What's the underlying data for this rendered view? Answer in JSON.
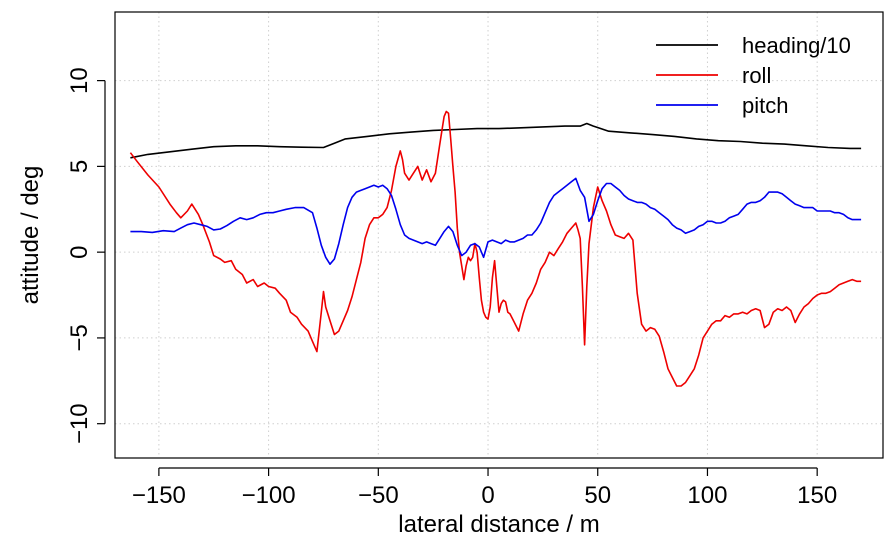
{
  "chart_data": {
    "type": "line",
    "title": "",
    "xlabel": "lateral distance / m",
    "ylabel": "attitude / deg",
    "xlim": [
      -170,
      180
    ],
    "ylim": [
      -12,
      14
    ],
    "xticks": [
      -150,
      -100,
      -50,
      0,
      50,
      100,
      150
    ],
    "yticks": [
      -10,
      -5,
      0,
      5,
      10
    ],
    "xtick_labels": [
      "−150",
      "−100",
      "−50",
      "0",
      "50",
      "100",
      "150"
    ],
    "ytick_labels": [
      "−10",
      "−5",
      "0",
      "5",
      "10"
    ],
    "grid": true,
    "legend_position": "top-right",
    "series": [
      {
        "name": "heading/10",
        "color": "#000000",
        "x": [
          -163,
          -155,
          -145,
          -135,
          -125,
          -115,
          -105,
          -95,
          -85,
          -75,
          -70,
          -65,
          -55,
          -45,
          -35,
          -25,
          -15,
          -5,
          5,
          15,
          25,
          35,
          42,
          45,
          48,
          55,
          65,
          75,
          85,
          95,
          105,
          115,
          125,
          135,
          145,
          155,
          165,
          170
        ],
        "y": [
          5.5,
          5.7,
          5.85,
          6.0,
          6.15,
          6.2,
          6.2,
          6.15,
          6.12,
          6.1,
          6.35,
          6.6,
          6.75,
          6.9,
          7.0,
          7.1,
          7.15,
          7.2,
          7.2,
          7.25,
          7.3,
          7.35,
          7.35,
          7.5,
          7.35,
          7.05,
          6.95,
          6.85,
          6.75,
          6.6,
          6.5,
          6.45,
          6.35,
          6.3,
          6.2,
          6.1,
          6.05,
          6.05
        ]
      },
      {
        "name": "roll",
        "color": "#ee0000",
        "x": [
          -163,
          -160,
          -155,
          -150,
          -145,
          -142,
          -140,
          -137,
          -135,
          -132,
          -130,
          -127,
          -125,
          -122,
          -120,
          -117,
          -115,
          -112,
          -110,
          -107,
          -105,
          -102,
          -100,
          -97,
          -95,
          -92,
          -90,
          -87,
          -85,
          -82,
          -80,
          -78,
          -76,
          -75,
          -74,
          -72,
          -70,
          -68,
          -66,
          -64,
          -62,
          -60,
          -58,
          -56,
          -54,
          -52,
          -50,
          -48,
          -46,
          -44,
          -42,
          -40,
          -39,
          -38,
          -36,
          -34,
          -32,
          -30,
          -28,
          -26,
          -24,
          -22,
          -20,
          -19,
          -18,
          -17,
          -16,
          -15,
          -14,
          -13,
          -12,
          -11,
          -10,
          -9,
          -8,
          -7,
          -6,
          -5,
          -4,
          -3,
          -2,
          -1,
          0,
          1,
          2,
          3,
          4,
          5,
          6,
          7,
          8,
          9,
          10,
          12,
          14,
          16,
          18,
          20,
          22,
          24,
          26,
          28,
          30,
          32,
          34,
          36,
          38,
          40,
          41,
          42,
          43,
          44,
          45,
          46,
          48,
          50,
          52,
          54,
          56,
          58,
          60,
          62,
          64,
          66,
          68,
          70,
          72,
          74,
          76,
          78,
          80,
          82,
          84,
          86,
          88,
          90,
          92,
          94,
          96,
          98,
          100,
          102,
          104,
          106,
          108,
          110,
          112,
          114,
          116,
          118,
          120,
          122,
          124,
          126,
          128,
          130,
          132,
          134,
          136,
          138,
          140,
          142,
          144,
          146,
          148,
          150,
          152,
          154,
          156,
          158,
          160,
          162,
          164,
          166,
          168,
          170
        ],
        "y": [
          5.8,
          5.3,
          4.5,
          3.8,
          2.8,
          2.3,
          2.0,
          2.4,
          2.8,
          2.2,
          1.6,
          0.6,
          -0.2,
          -0.4,
          -0.6,
          -0.5,
          -1.0,
          -1.3,
          -1.8,
          -1.6,
          -2.0,
          -1.8,
          -2.0,
          -2.1,
          -2.4,
          -2.8,
          -3.5,
          -3.8,
          -4.2,
          -4.6,
          -5.2,
          -5.8,
          -3.5,
          -2.3,
          -3.2,
          -4.0,
          -4.8,
          -4.6,
          -4.0,
          -3.4,
          -2.6,
          -1.6,
          -0.6,
          0.8,
          1.6,
          2.0,
          2.0,
          2.2,
          2.6,
          3.6,
          5.0,
          5.9,
          5.4,
          4.6,
          4.2,
          4.6,
          5.0,
          4.2,
          4.8,
          4.1,
          4.6,
          6.3,
          7.9,
          8.2,
          8.1,
          6.6,
          5.0,
          3.5,
          1.4,
          0.0,
          -0.8,
          -1.6,
          -0.8,
          -0.3,
          -0.5,
          -0.3,
          0.5,
          0.0,
          -1.5,
          -2.8,
          -3.5,
          -3.8,
          -3.9,
          -3.2,
          -1.5,
          -0.5,
          -2.0,
          -3.5,
          -3.0,
          -2.8,
          -2.9,
          -3.5,
          -3.6,
          -4.1,
          -4.6,
          -3.6,
          -2.8,
          -2.4,
          -1.8,
          -1.0,
          -0.6,
          0.0,
          -0.2,
          0.2,
          0.6,
          1.1,
          1.4,
          1.7,
          1.3,
          0.8,
          -2.0,
          -5.4,
          -2.0,
          0.5,
          2.6,
          3.8,
          3.0,
          2.4,
          1.6,
          1.0,
          0.9,
          0.8,
          1.1,
          0.7,
          -2.4,
          -4.2,
          -4.6,
          -4.4,
          -4.5,
          -4.9,
          -5.8,
          -6.8,
          -7.3,
          -7.8,
          -7.8,
          -7.6,
          -7.2,
          -6.8,
          -6.0,
          -5.0,
          -4.6,
          -4.2,
          -4.0,
          -4.0,
          -3.7,
          -3.8,
          -3.6,
          -3.6,
          -3.5,
          -3.6,
          -3.4,
          -3.3,
          -3.4,
          -4.4,
          -4.2,
          -3.5,
          -3.3,
          -3.4,
          -3.2,
          -3.4,
          -4.1,
          -3.6,
          -3.2,
          -3.0,
          -2.7,
          -2.5,
          -2.4,
          -2.4,
          -2.3,
          -2.1,
          -1.9,
          -1.8,
          -1.7,
          -1.6,
          -1.7,
          -1.7
        ]
      },
      {
        "name": "pitch",
        "color": "#0000ee",
        "x": [
          -163,
          -158,
          -153,
          -148,
          -143,
          -140,
          -137,
          -134,
          -131,
          -128,
          -125,
          -122,
          -119,
          -116,
          -113,
          -110,
          -107,
          -104,
          -101,
          -98,
          -95,
          -92,
          -88,
          -84,
          -80,
          -78,
          -76,
          -74,
          -72,
          -70,
          -68,
          -66,
          -64,
          -62,
          -60,
          -58,
          -56,
          -54,
          -52,
          -50,
          -48,
          -46,
          -44,
          -42,
          -40,
          -38,
          -36,
          -34,
          -32,
          -30,
          -28,
          -26,
          -24,
          -22,
          -20,
          -18,
          -16,
          -14,
          -12,
          -10,
          -8,
          -6,
          -4,
          -2,
          0,
          2,
          4,
          6,
          8,
          10,
          12,
          14,
          16,
          18,
          20,
          22,
          24,
          26,
          28,
          30,
          32,
          34,
          36,
          38,
          40,
          42,
          44,
          46,
          48,
          50,
          52,
          54,
          56,
          58,
          60,
          62,
          64,
          66,
          68,
          70,
          72,
          74,
          76,
          78,
          80,
          82,
          84,
          86,
          88,
          90,
          92,
          94,
          96,
          98,
          100,
          102,
          104,
          106,
          108,
          110,
          112,
          114,
          116,
          118,
          120,
          122,
          124,
          126,
          128,
          130,
          132,
          134,
          136,
          138,
          140,
          142,
          144,
          146,
          148,
          150,
          152,
          154,
          156,
          158,
          160,
          162,
          164,
          166,
          168,
          170
        ],
        "y": [
          1.2,
          1.2,
          1.15,
          1.25,
          1.2,
          1.4,
          1.6,
          1.7,
          1.6,
          1.5,
          1.3,
          1.35,
          1.55,
          1.8,
          2.0,
          1.9,
          2.0,
          2.2,
          2.3,
          2.3,
          2.4,
          2.5,
          2.6,
          2.6,
          2.3,
          1.4,
          0.4,
          -0.3,
          -0.7,
          -0.4,
          0.5,
          1.6,
          2.6,
          3.2,
          3.5,
          3.6,
          3.7,
          3.8,
          3.9,
          3.8,
          3.9,
          3.7,
          3.3,
          2.5,
          1.6,
          1.0,
          0.8,
          0.7,
          0.6,
          0.5,
          0.6,
          0.5,
          0.4,
          0.8,
          1.2,
          1.5,
          1.2,
          0.4,
          -0.2,
          0.0,
          0.4,
          0.5,
          0.3,
          -0.3,
          0.6,
          0.7,
          0.6,
          0.5,
          0.7,
          0.6,
          0.6,
          0.7,
          0.8,
          1.0,
          1.0,
          1.3,
          1.7,
          2.3,
          2.9,
          3.3,
          3.5,
          3.7,
          3.9,
          4.1,
          4.3,
          3.6,
          3.2,
          1.8,
          2.2,
          3.0,
          3.7,
          4.0,
          4.0,
          3.8,
          3.6,
          3.3,
          3.1,
          3.0,
          2.9,
          2.9,
          2.8,
          2.6,
          2.5,
          2.3,
          2.1,
          1.9,
          1.6,
          1.4,
          1.3,
          1.1,
          1.2,
          1.3,
          1.5,
          1.6,
          1.8,
          1.8,
          1.7,
          1.7,
          1.8,
          2.0,
          2.1,
          2.2,
          2.5,
          2.8,
          2.9,
          2.9,
          3.0,
          3.2,
          3.5,
          3.5,
          3.5,
          3.4,
          3.2,
          3.0,
          2.8,
          2.7,
          2.6,
          2.6,
          2.6,
          2.4,
          2.4,
          2.4,
          2.4,
          2.3,
          2.3,
          2.2,
          2.0,
          1.9,
          1.9,
          1.9
        ]
      }
    ]
  }
}
